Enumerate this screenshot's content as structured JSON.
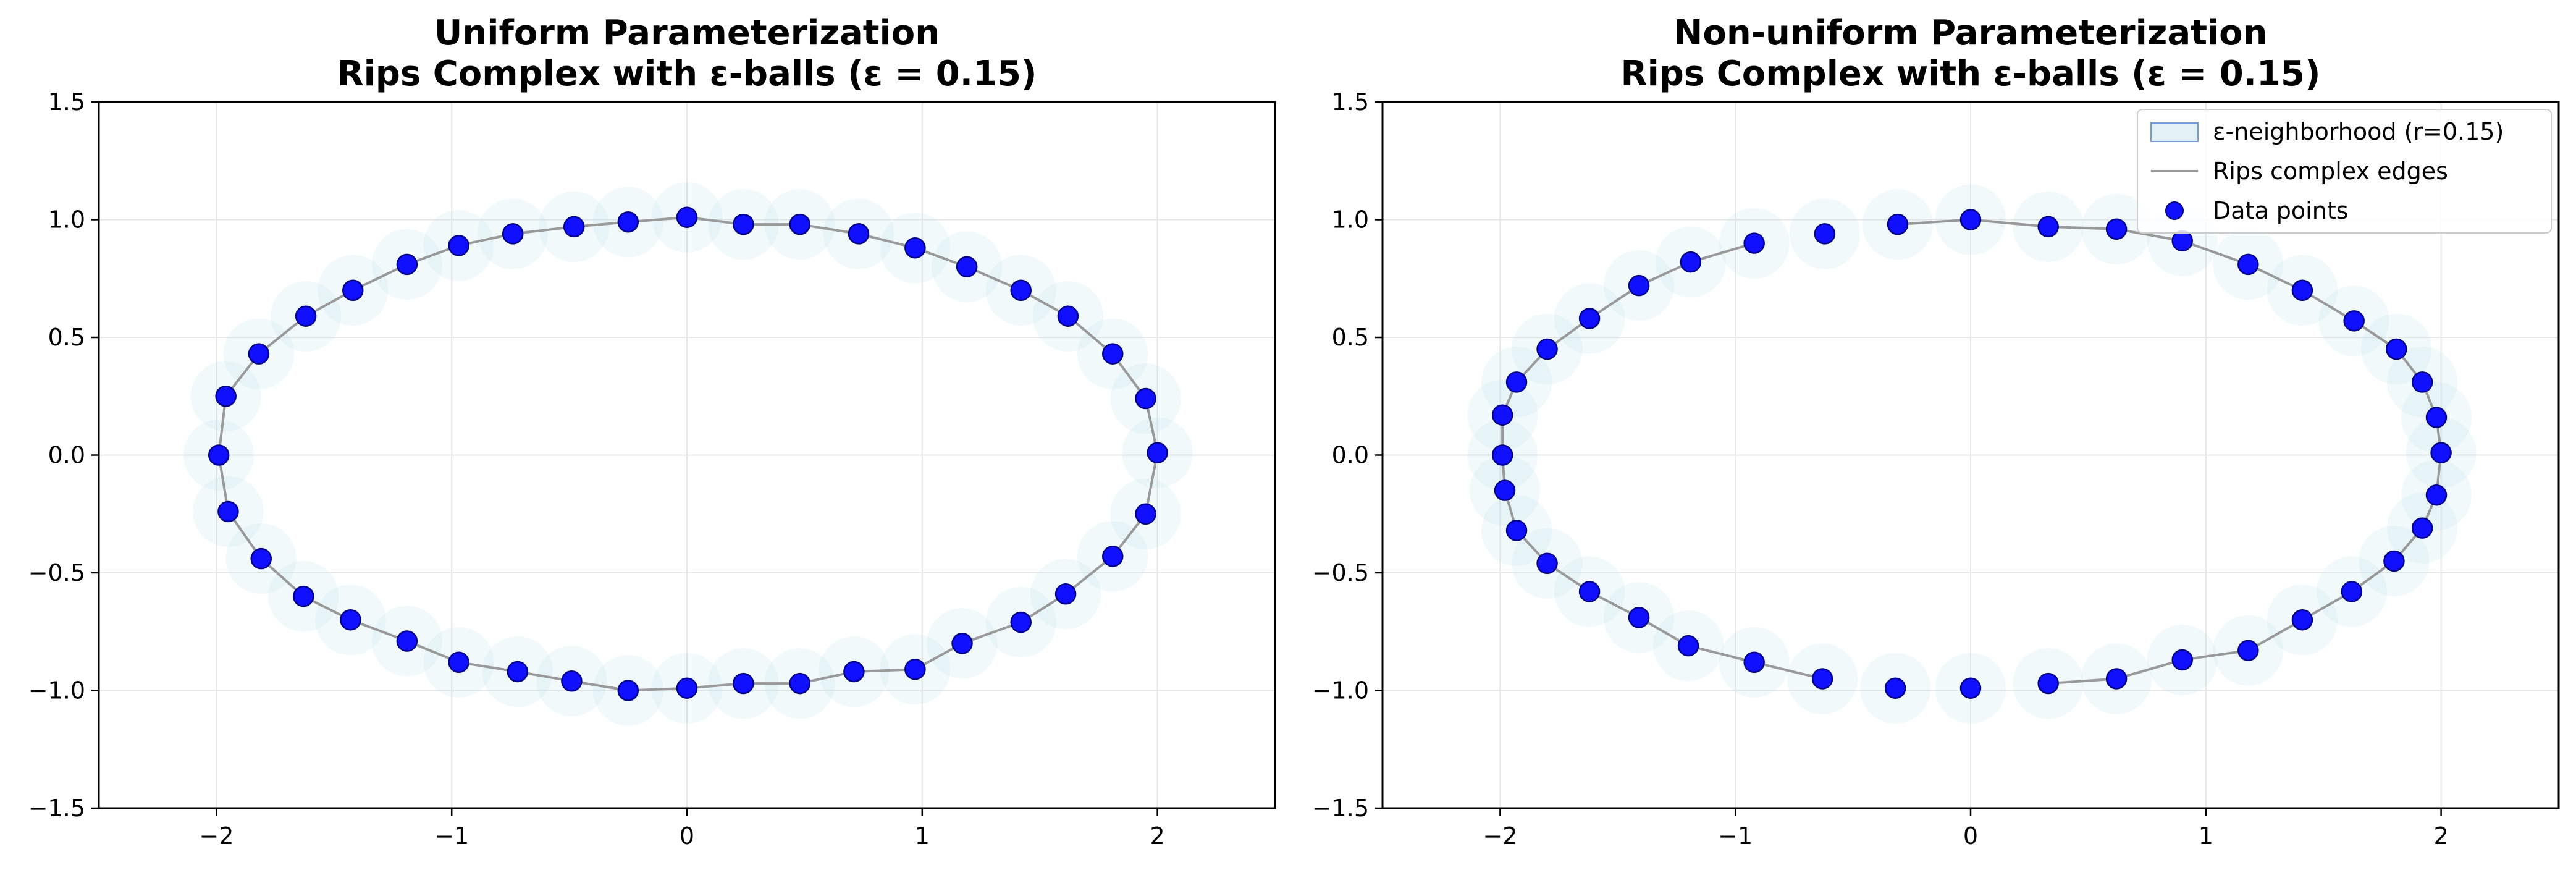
{
  "colors": {
    "point": "#1010ff",
    "point_edge": "#00008b",
    "edge": "#999999",
    "ball_fill": "#add8e6",
    "ball_edge": "#7799dd",
    "grid": "#e6e6e6"
  },
  "legend": {
    "placement": "upper-right",
    "items": [
      {
        "key": "ball",
        "label": "ε-neighborhood (r=0.15)"
      },
      {
        "key": "edge",
        "label": "Rips complex edges"
      },
      {
        "key": "point",
        "label": "Data points"
      }
    ]
  },
  "chart_data": [
    {
      "type": "scatter",
      "title_line1": "Uniform Parameterization",
      "title_line2": "Rips Complex with ε-balls (ε = 0.15)",
      "xlim": [
        -2.5,
        2.5
      ],
      "ylim": [
        -1.5,
        1.5
      ],
      "xticks": [
        -2,
        -1,
        0,
        1,
        2
      ],
      "xtick_labels": [
        "−2",
        "−1",
        "0",
        "1",
        "2"
      ],
      "yticks": [
        1.5,
        1.0,
        0.5,
        0.0,
        -0.5,
        -1.0,
        -1.5
      ],
      "ytick_labels": [
        "1.5",
        "1.0",
        "0.5",
        "0.0",
        "−0.5",
        "−1.0",
        "−1.5"
      ],
      "grid": true,
      "epsilon": 0.15,
      "points": [
        [
          2.0,
          0.01
        ],
        [
          1.95,
          0.24
        ],
        [
          1.81,
          0.43
        ],
        [
          1.62,
          0.59
        ],
        [
          1.42,
          0.7
        ],
        [
          1.19,
          0.8
        ],
        [
          0.97,
          0.88
        ],
        [
          0.73,
          0.94
        ],
        [
          0.48,
          0.98
        ],
        [
          0.24,
          0.98
        ],
        [
          0.0,
          1.01
        ],
        [
          -0.25,
          0.99
        ],
        [
          -0.48,
          0.97
        ],
        [
          -0.74,
          0.94
        ],
        [
          -0.97,
          0.89
        ],
        [
          -1.19,
          0.81
        ],
        [
          -1.42,
          0.7
        ],
        [
          -1.62,
          0.59
        ],
        [
          -1.82,
          0.43
        ],
        [
          -1.96,
          0.25
        ],
        [
          -1.99,
          0.0
        ],
        [
          -1.95,
          -0.24
        ],
        [
          -1.81,
          -0.44
        ],
        [
          -1.63,
          -0.6
        ],
        [
          -1.43,
          -0.7
        ],
        [
          -1.19,
          -0.79
        ],
        [
          -0.97,
          -0.88
        ],
        [
          -0.72,
          -0.92
        ],
        [
          -0.49,
          -0.96
        ],
        [
          -0.25,
          -1.0
        ],
        [
          0.0,
          -0.99
        ],
        [
          0.24,
          -0.97
        ],
        [
          0.48,
          -0.97
        ],
        [
          0.71,
          -0.92
        ],
        [
          0.97,
          -0.91
        ],
        [
          1.17,
          -0.8
        ],
        [
          1.42,
          -0.71
        ],
        [
          1.61,
          -0.59
        ],
        [
          1.81,
          -0.43
        ],
        [
          1.95,
          -0.25
        ]
      ],
      "edges": [
        [
          0,
          1
        ],
        [
          1,
          2
        ],
        [
          2,
          3
        ],
        [
          3,
          4
        ],
        [
          4,
          5
        ],
        [
          5,
          6
        ],
        [
          6,
          7
        ],
        [
          7,
          8
        ],
        [
          8,
          9
        ],
        [
          9,
          10
        ],
        [
          10,
          11
        ],
        [
          11,
          12
        ],
        [
          12,
          13
        ],
        [
          13,
          14
        ],
        [
          14,
          15
        ],
        [
          15,
          16
        ],
        [
          16,
          17
        ],
        [
          17,
          18
        ],
        [
          18,
          19
        ],
        [
          19,
          20
        ],
        [
          20,
          21
        ],
        [
          21,
          22
        ],
        [
          22,
          23
        ],
        [
          23,
          24
        ],
        [
          24,
          25
        ],
        [
          25,
          26
        ],
        [
          26,
          27
        ],
        [
          27,
          28
        ],
        [
          28,
          29
        ],
        [
          29,
          30
        ],
        [
          30,
          31
        ],
        [
          31,
          32
        ],
        [
          32,
          33
        ],
        [
          33,
          34
        ],
        [
          34,
          35
        ],
        [
          35,
          36
        ],
        [
          36,
          37
        ],
        [
          37,
          38
        ],
        [
          38,
          39
        ],
        [
          39,
          0
        ]
      ],
      "show_legend": false
    },
    {
      "type": "scatter",
      "title_line1": "Non-uniform Parameterization",
      "title_line2": "Rips Complex with ε-balls (ε = 0.15)",
      "xlim": [
        -2.5,
        2.5
      ],
      "ylim": [
        -1.5,
        1.5
      ],
      "xticks": [
        -2,
        -1,
        0,
        1,
        2
      ],
      "xtick_labels": [
        "−2",
        "−1",
        "0",
        "1",
        "2"
      ],
      "yticks": [
        1.5,
        1.0,
        0.5,
        0.0,
        -0.5,
        -1.0,
        -1.5
      ],
      "ytick_labels": [
        "1.5",
        "1.0",
        "0.5",
        "0.0",
        "−0.5",
        "−1.0",
        "−1.5"
      ],
      "grid": true,
      "epsilon": 0.15,
      "points": [
        [
          2.0,
          0.01
        ],
        [
          1.98,
          0.16
        ],
        [
          1.92,
          0.31
        ],
        [
          1.81,
          0.45
        ],
        [
          1.63,
          0.57
        ],
        [
          1.41,
          0.7
        ],
        [
          1.18,
          0.81
        ],
        [
          0.9,
          0.91
        ],
        [
          0.62,
          0.96
        ],
        [
          0.33,
          0.97
        ],
        [
          0.0,
          1.0
        ],
        [
          -0.31,
          0.98
        ],
        [
          -0.62,
          0.94
        ],
        [
          -0.92,
          0.9
        ],
        [
          -1.19,
          0.82
        ],
        [
          -1.41,
          0.72
        ],
        [
          -1.62,
          0.58
        ],
        [
          -1.8,
          0.45
        ],
        [
          -1.93,
          0.31
        ],
        [
          -1.99,
          0.17
        ],
        [
          -1.99,
          0.0
        ],
        [
          -1.98,
          -0.15
        ],
        [
          -1.93,
          -0.32
        ],
        [
          -1.8,
          -0.46
        ],
        [
          -1.62,
          -0.58
        ],
        [
          -1.41,
          -0.69
        ],
        [
          -1.2,
          -0.81
        ],
        [
          -0.92,
          -0.88
        ],
        [
          -0.63,
          -0.95
        ],
        [
          -0.32,
          -0.99
        ],
        [
          0.0,
          -0.99
        ],
        [
          0.33,
          -0.97
        ],
        [
          0.62,
          -0.95
        ],
        [
          0.9,
          -0.87
        ],
        [
          1.18,
          -0.83
        ],
        [
          1.41,
          -0.7
        ],
        [
          1.62,
          -0.58
        ],
        [
          1.8,
          -0.45
        ],
        [
          1.92,
          -0.31
        ],
        [
          1.98,
          -0.17
        ]
      ],
      "edges": [
        [
          0,
          1
        ],
        [
          1,
          2
        ],
        [
          2,
          3
        ],
        [
          3,
          4
        ],
        [
          4,
          5
        ],
        [
          5,
          6
        ],
        [
          6,
          7
        ],
        [
          7,
          8
        ],
        [
          8,
          9
        ],
        [
          9,
          10
        ],
        [
          10,
          11
        ],
        [
          13,
          14
        ],
        [
          14,
          15
        ],
        [
          15,
          16
        ],
        [
          16,
          17
        ],
        [
          17,
          18
        ],
        [
          18,
          19
        ],
        [
          19,
          20
        ],
        [
          20,
          21
        ],
        [
          21,
          22
        ],
        [
          22,
          23
        ],
        [
          23,
          24
        ],
        [
          24,
          25
        ],
        [
          25,
          26
        ],
        [
          26,
          27
        ],
        [
          27,
          28
        ],
        [
          31,
          32
        ],
        [
          32,
          33
        ],
        [
          33,
          34
        ],
        [
          34,
          35
        ],
        [
          35,
          36
        ],
        [
          36,
          37
        ],
        [
          37,
          38
        ],
        [
          38,
          39
        ],
        [
          39,
          0
        ]
      ],
      "show_legend": true
    }
  ]
}
